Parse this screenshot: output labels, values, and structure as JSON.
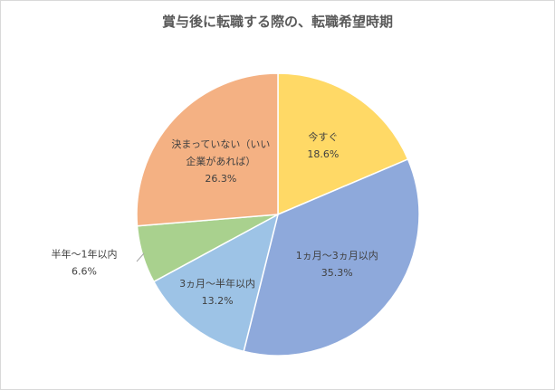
{
  "chart_data": {
    "type": "pie",
    "title": "賞与後に転職する際の、転職希望時期",
    "slices": [
      {
        "label_lines": [
          "今すぐ"
        ],
        "value": 18.6,
        "value_label": "18.6%",
        "color": "#FFD966"
      },
      {
        "label_lines": [
          "1ヵ月～3ヵ月以内"
        ],
        "value": 35.3,
        "value_label": "35.3%",
        "color": "#8EA9DB"
      },
      {
        "label_lines": [
          "3ヵ月～半年以内"
        ],
        "value": 13.2,
        "value_label": "13.2%",
        "color": "#9DC3E6"
      },
      {
        "label_lines": [
          "半年～1年以内"
        ],
        "value": 6.6,
        "value_label": "6.6%",
        "color": "#A9D18E"
      },
      {
        "label_lines": [
          "決まっていない（いい",
          "企業があれば）"
        ],
        "value": 26.3,
        "value_label": "26.3%",
        "color": "#F4B183"
      }
    ],
    "start_angle_deg": 0,
    "direction": "clockwise",
    "legend": "none"
  }
}
